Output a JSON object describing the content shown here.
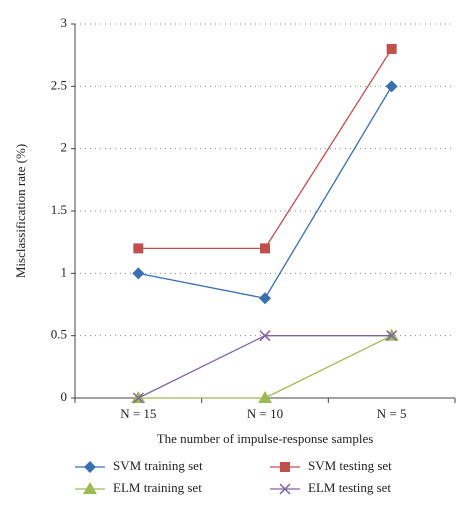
{
  "chart_data": {
    "type": "line",
    "y_label": "Misclassification rate (%)",
    "x_label": "The number of impulse-response samples",
    "categories": [
      "N = 15",
      "N = 10",
      "N = 5"
    ],
    "series": [
      {
        "name": "SVM training set",
        "color": "#3a6fb0",
        "marker": "diamond",
        "values": [
          1,
          0.8,
          2.5
        ]
      },
      {
        "name": "SVM testing set",
        "color": "#c0504d",
        "marker": "square",
        "values": [
          1.2,
          1.2,
          2.8
        ]
      },
      {
        "name": "ELM training set",
        "color": "#9bbb59",
        "marker": "triangle",
        "values": [
          0,
          0,
          0.5
        ]
      },
      {
        "name": "ELM testing set",
        "color": "#8064a2",
        "marker": "x",
        "values": [
          0,
          0.5,
          0.5
        ]
      }
    ],
    "ylim": [
      0,
      3
    ],
    "yticks": [
      0,
      0.5,
      1,
      1.5,
      2,
      2.5,
      3
    ],
    "grid": true
  }
}
